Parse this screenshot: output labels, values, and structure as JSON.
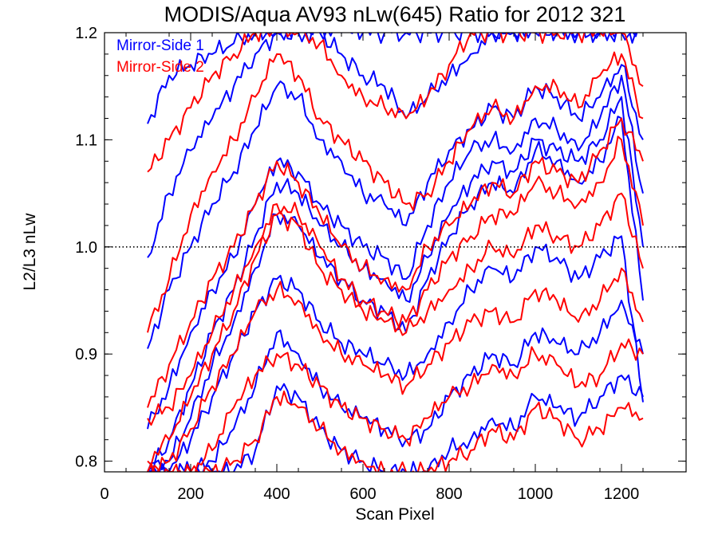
{
  "chart_data": {
    "type": "line",
    "title": "MODIS/Aqua AV93 nLw(645) Ratio for 2012 321",
    "xlabel": "Scan Pixel",
    "ylabel": "L2/L3 nLw",
    "xlim": [
      0,
      1350
    ],
    "ylim": [
      0.79,
      1.2
    ],
    "xticks": [
      0,
      200,
      400,
      600,
      800,
      1000,
      1200
    ],
    "xtick_labels": [
      "0",
      "200",
      "400",
      "600",
      "800",
      "1000",
      "1200"
    ],
    "yticks": [
      0.8,
      0.9,
      1.0,
      1.1,
      1.2
    ],
    "ytick_labels": [
      "0.8",
      "0.9",
      "1.0",
      "1.1",
      "1.2"
    ],
    "reference_line": {
      "y": 1.0,
      "style": "dotted",
      "color": "#000000"
    },
    "legend": {
      "placement": "top-left",
      "entries": [
        {
          "label": "Mirror-Side 1",
          "color": "#0000ff"
        },
        {
          "label": "Mirror-Side 2",
          "color": "#ff0000"
        }
      ]
    },
    "x": [
      100,
      150,
      200,
      250,
      300,
      350,
      400,
      450,
      500,
      550,
      600,
      650,
      700,
      750,
      800,
      850,
      900,
      950,
      1000,
      1050,
      1100,
      1150,
      1200,
      1250
    ],
    "series": [
      {
        "group": "Mirror-Side 1",
        "color": "#0000ff",
        "values": [
          1.115,
          1.16,
          1.17,
          1.18,
          1.19,
          1.2,
          1.2,
          1.2,
          1.2,
          1.2,
          1.2,
          1.2,
          1.2,
          1.2,
          1.2,
          1.2,
          1.2,
          1.2,
          1.2,
          1.2,
          1.2,
          1.2,
          1.2,
          1.2
        ]
      },
      {
        "group": "Mirror-Side 1",
        "color": "#0000ff",
        "values": [
          0.99,
          1.05,
          1.09,
          1.12,
          1.15,
          1.18,
          1.2,
          1.2,
          1.2,
          1.18,
          1.16,
          1.15,
          1.12,
          1.14,
          1.16,
          1.18,
          1.2,
          1.2,
          1.2,
          1.2,
          1.2,
          1.2,
          1.2,
          1.2
        ]
      },
      {
        "group": "Mirror-Side 1",
        "color": "#0000ff",
        "values": [
          0.905,
          0.96,
          1.0,
          1.04,
          1.07,
          1.11,
          1.15,
          1.14,
          1.1,
          1.08,
          1.05,
          1.04,
          1.02,
          1.06,
          1.09,
          1.11,
          1.13,
          1.12,
          1.15,
          1.14,
          1.12,
          1.14,
          1.17,
          1.1
        ]
      },
      {
        "group": "Mirror-Side 1",
        "color": "#0000ff",
        "values": [
          0.83,
          0.87,
          0.92,
          0.96,
          0.99,
          1.04,
          1.08,
          1.07,
          1.04,
          1.02,
          1.0,
          0.99,
          0.97,
          1.02,
          1.06,
          1.09,
          1.1,
          1.09,
          1.12,
          1.11,
          1.09,
          1.12,
          1.16,
          1.05
        ]
      },
      {
        "group": "Mirror-Side 1",
        "color": "#0000ff",
        "values": [
          0.79,
          0.82,
          0.87,
          0.92,
          0.96,
          1.01,
          1.06,
          1.05,
          1.02,
          1.0,
          0.98,
          0.97,
          0.95,
          0.99,
          1.03,
          1.06,
          1.08,
          1.07,
          1.1,
          1.09,
          1.08,
          1.1,
          1.14,
          1.0
        ]
      },
      {
        "group": "Mirror-Side 1",
        "color": "#0000ff",
        "values": [
          0.79,
          0.8,
          0.84,
          0.89,
          0.93,
          0.98,
          1.03,
          1.02,
          0.99,
          0.97,
          0.95,
          0.94,
          0.92,
          0.97,
          1.01,
          1.04,
          1.06,
          1.05,
          1.09,
          1.08,
          1.06,
          1.08,
          1.12,
          0.95
        ]
      },
      {
        "group": "Mirror-Side 1",
        "color": "#0000ff",
        "values": [
          0.79,
          0.79,
          0.82,
          0.86,
          0.9,
          0.94,
          0.97,
          0.96,
          0.93,
          0.91,
          0.9,
          0.89,
          0.88,
          0.9,
          0.93,
          0.96,
          0.98,
          0.97,
          1.0,
          0.99,
          0.97,
          0.99,
          1.01,
          0.855
        ]
      },
      {
        "group": "Mirror-Side 1",
        "color": "#0000ff",
        "values": [
          0.79,
          0.79,
          0.79,
          0.8,
          0.83,
          0.87,
          0.92,
          0.9,
          0.87,
          0.85,
          0.84,
          0.83,
          0.82,
          0.83,
          0.86,
          0.88,
          0.9,
          0.89,
          0.92,
          0.91,
          0.9,
          0.92,
          0.95,
          0.9
        ]
      },
      {
        "group": "Mirror-Side 1",
        "color": "#0000ff",
        "values": [
          0.79,
          0.79,
          0.79,
          0.79,
          0.79,
          0.81,
          0.87,
          0.86,
          0.83,
          0.81,
          0.8,
          0.79,
          0.79,
          0.79,
          0.81,
          0.82,
          0.84,
          0.83,
          0.86,
          0.85,
          0.84,
          0.86,
          0.88,
          0.86
        ]
      },
      {
        "group": "Mirror-Side 2",
        "color": "#ff0000",
        "values": [
          1.07,
          1.1,
          1.13,
          1.16,
          1.18,
          1.2,
          1.2,
          1.2,
          1.19,
          1.16,
          1.14,
          1.13,
          1.12,
          1.14,
          1.17,
          1.2,
          1.2,
          1.2,
          1.2,
          1.2,
          1.2,
          1.2,
          1.2,
          1.15
        ]
      },
      {
        "group": "Mirror-Side 2",
        "color": "#ff0000",
        "values": [
          0.92,
          0.97,
          1.03,
          1.07,
          1.1,
          1.14,
          1.18,
          1.16,
          1.12,
          1.1,
          1.08,
          1.06,
          1.04,
          1.05,
          1.08,
          1.11,
          1.13,
          1.12,
          1.15,
          1.15,
          1.13,
          1.16,
          1.18,
          1.12
        ]
      },
      {
        "group": "Mirror-Side 2",
        "color": "#ff0000",
        "values": [
          0.85,
          0.89,
          0.93,
          0.97,
          1.0,
          1.04,
          1.08,
          1.06,
          1.03,
          1.0,
          0.98,
          0.97,
          0.96,
          1.0,
          1.02,
          1.04,
          1.06,
          1.05,
          1.08,
          1.07,
          1.06,
          1.09,
          1.12,
          1.08
        ]
      },
      {
        "group": "Mirror-Side 2",
        "color": "#ff0000",
        "values": [
          0.84,
          0.85,
          0.88,
          0.92,
          0.96,
          1.0,
          1.04,
          1.03,
          1.0,
          0.97,
          0.95,
          0.94,
          0.93,
          0.96,
          0.99,
          1.01,
          1.03,
          1.03,
          1.06,
          1.05,
          1.04,
          1.06,
          1.1,
          1.02
        ]
      },
      {
        "group": "Mirror-Side 2",
        "color": "#ff0000",
        "values": [
          0.8,
          0.82,
          0.86,
          0.9,
          0.94,
          0.99,
          1.03,
          1.02,
          0.98,
          0.96,
          0.94,
          0.93,
          0.92,
          0.94,
          0.96,
          0.98,
          1.0,
          0.99,
          1.02,
          1.01,
          1.0,
          1.02,
          1.05,
          0.98
        ]
      },
      {
        "group": "Mirror-Side 2",
        "color": "#ff0000",
        "values": [
          0.79,
          0.8,
          0.83,
          0.87,
          0.9,
          0.94,
          0.96,
          0.95,
          0.92,
          0.9,
          0.89,
          0.88,
          0.87,
          0.89,
          0.91,
          0.93,
          0.94,
          0.93,
          0.96,
          0.95,
          0.93,
          0.95,
          0.98,
          0.93
        ]
      },
      {
        "group": "Mirror-Side 2",
        "color": "#ff0000",
        "values": [
          0.79,
          0.79,
          0.79,
          0.81,
          0.85,
          0.88,
          0.9,
          0.89,
          0.87,
          0.85,
          0.84,
          0.83,
          0.82,
          0.84,
          0.86,
          0.87,
          0.89,
          0.88,
          0.9,
          0.89,
          0.87,
          0.88,
          0.91,
          0.9
        ]
      },
      {
        "group": "Mirror-Side 2",
        "color": "#ff0000",
        "values": [
          0.79,
          0.79,
          0.79,
          0.79,
          0.8,
          0.82,
          0.86,
          0.85,
          0.83,
          0.81,
          0.8,
          0.79,
          0.79,
          0.79,
          0.8,
          0.81,
          0.83,
          0.82,
          0.85,
          0.84,
          0.82,
          0.83,
          0.85,
          0.84
        ]
      }
    ]
  }
}
